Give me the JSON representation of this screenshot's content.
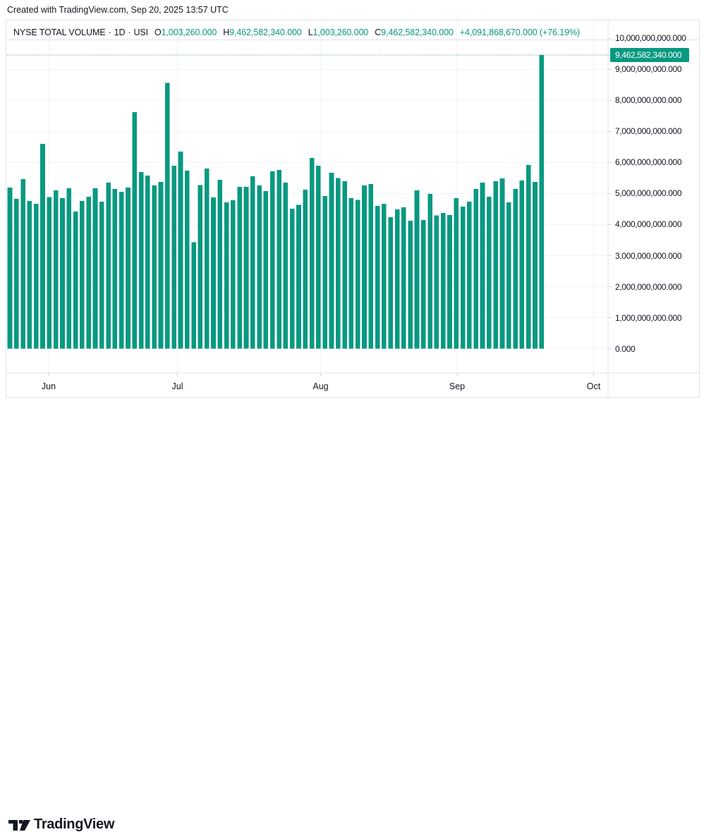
{
  "credit": "Created with TradingView.com, Sep 20, 2025 13:57 UTC",
  "legend": {
    "symbol": "NYSE TOTAL VOLUME",
    "separator": "·",
    "interval": "1D",
    "exchange": "USI",
    "ohlc": [
      {
        "key": "O",
        "value": "1,003,260.000"
      },
      {
        "key": "H",
        "value": "9,462,582,340.000"
      },
      {
        "key": "L",
        "value": "1,003,260.000"
      },
      {
        "key": "C",
        "value": "9,462,582,340.000"
      }
    ],
    "change": "+4,091,868,670.000 (+76.19%)"
  },
  "price_axis": {
    "ticks": [
      {
        "label": "10,000,000,000.000",
        "value": 10
      },
      {
        "label": "9,000,000,000.000",
        "value": 9
      },
      {
        "label": "8,000,000,000.000",
        "value": 8
      },
      {
        "label": "7,000,000,000.000",
        "value": 7
      },
      {
        "label": "6,000,000,000.000",
        "value": 6
      },
      {
        "label": "5,000,000,000.000",
        "value": 5
      },
      {
        "label": "4,000,000,000.000",
        "value": 4
      },
      {
        "label": "3,000,000,000.000",
        "value": 3
      },
      {
        "label": "2,000,000,000.000",
        "value": 2
      },
      {
        "label": "1,000,000,000.000",
        "value": 1
      },
      {
        "label": "0.000",
        "value": 0
      }
    ],
    "last": {
      "label": "9,462,582,340.000",
      "value": 9.46258234
    }
  },
  "time_axis": {
    "ticks": [
      {
        "label": "Jun",
        "x": 68
      },
      {
        "label": "Jul",
        "x": 250.5
      },
      {
        "label": "Aug",
        "x": 453.5
      },
      {
        "label": "Sep",
        "x": 647
      },
      {
        "label": "Oct",
        "x": 840.5
      }
    ]
  },
  "chart_data": {
    "type": "bar",
    "title": "NYSE TOTAL VOLUME, 1D, USI",
    "xlabel": "",
    "ylabel": "",
    "unit": "billions of shares (daily total volume)",
    "ylim": [
      0,
      10
    ],
    "grid": true,
    "legend_position": "top-left",
    "x_tick_labels": [
      "Jun",
      "Jul",
      "Aug",
      "Sep",
      "Oct"
    ],
    "y_tick_values": [
      0,
      1,
      2,
      3,
      4,
      5,
      6,
      7,
      8,
      9,
      10
    ],
    "bar_color": "#089981",
    "last_value": 9.46258234,
    "series": [
      {
        "name": "NYSE TOTAL VOLUME",
        "values": [
          5.19,
          4.83,
          5.47,
          4.76,
          4.67,
          6.6,
          4.88,
          5.1,
          4.85,
          5.17,
          4.42,
          4.76,
          4.9,
          5.17,
          4.74,
          5.35,
          5.15,
          5.06,
          5.19,
          7.62,
          5.69,
          5.58,
          5.26,
          5.37,
          8.57,
          5.9,
          6.35,
          5.74,
          3.43,
          5.27,
          5.81,
          4.87,
          5.44,
          4.72,
          4.78,
          5.22,
          5.22,
          5.56,
          5.26,
          5.08,
          5.71,
          5.76,
          5.35,
          4.51,
          4.63,
          5.12,
          6.15,
          5.9,
          4.92,
          5.67,
          5.5,
          5.4,
          4.85,
          4.8,
          5.26,
          5.3,
          4.6,
          4.67,
          4.24,
          4.49,
          4.56,
          4.13,
          5.1,
          4.15,
          4.99,
          4.29,
          4.38,
          4.31,
          4.85,
          4.58,
          4.74,
          5.15,
          5.35,
          4.9,
          5.4,
          5.49,
          4.72,
          5.15,
          5.42,
          5.92,
          5.37,
          9.46258234
        ]
      }
    ]
  },
  "footer": {
    "brand": "TradingView"
  },
  "colors": {
    "accent": "#089981",
    "text": "#131722",
    "grid": "#f0f3fa",
    "border": "#e0e3eb",
    "tick": "#d1d4dc",
    "marker_text": "#ffffff"
  }
}
